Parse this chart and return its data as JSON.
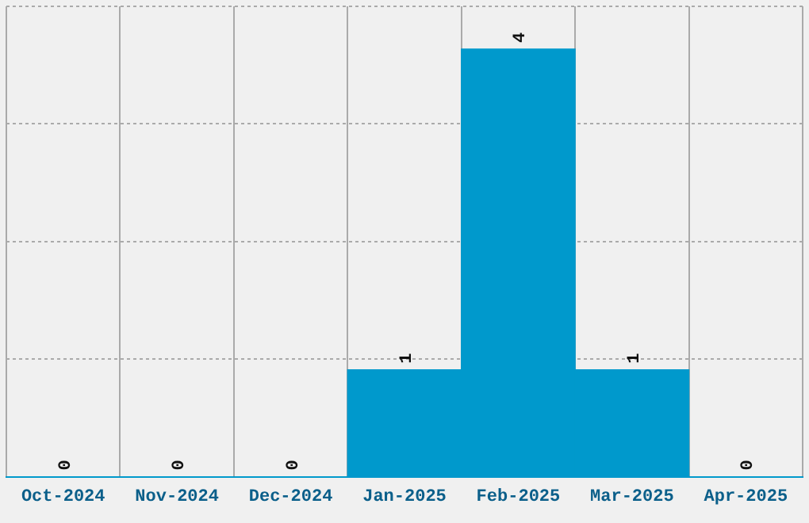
{
  "chart_data": {
    "type": "bar",
    "categories": [
      "Oct-2024",
      "Nov-2024",
      "Dec-2024",
      "Jan-2025",
      "Feb-2025",
      "Mar-2025",
      "Apr-2025"
    ],
    "values": [
      0,
      0,
      0,
      1,
      4,
      1,
      0
    ],
    "color": "#0099cc",
    "data_labels": true,
    "grid": true,
    "tick_labels": "x",
    "ylim": [
      0,
      4.4
    ],
    "yticks": [
      {
        "value": 0,
        "label": null
      },
      {
        "value": 1.1,
        "label": null
      },
      {
        "value": 2.2,
        "label": null
      },
      {
        "value": 3.3,
        "label": null
      },
      {
        "value": 4.4,
        "label": null
      }
    ]
  }
}
